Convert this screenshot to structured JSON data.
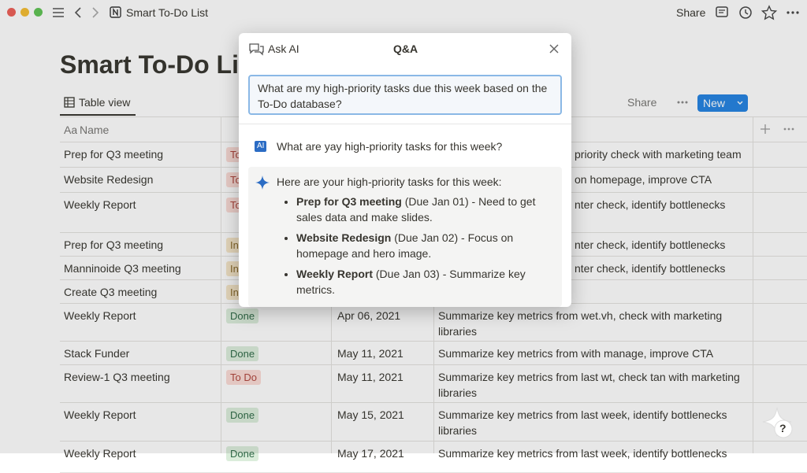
{
  "topbar": {
    "breadcrumb": "Smart To-Do List",
    "share": "Share"
  },
  "page": {
    "title": "Smart To-Do List",
    "view_tab": "Table view",
    "share": "Share",
    "new_button": "New"
  },
  "table": {
    "name_icon": "Aa",
    "name_header": "Name",
    "rows": [
      {
        "name": "Prep for Q3 meeting",
        "status": "To",
        "notes": "priority check with marketing team"
      },
      {
        "name": "Website Redesign",
        "status": "To",
        "notes": "on homepage, improve CTA"
      },
      {
        "name": "Weekly Report",
        "status": "To",
        "notes": "nter check, identify bottlenecks"
      },
      {
        "name": "Prep for Q3 meeting",
        "status": "In",
        "notes": "nter check, identify bottlenecks"
      },
      {
        "name": "Manninoide Q3 meeting",
        "status": "In",
        "notes": "nter check, identify bottlenecks"
      },
      {
        "name": "Create Q3 meeting",
        "status": "In"
      },
      {
        "name": "Weekly Report",
        "status": "Done",
        "date": "Apr 06, 2021",
        "notes": "Summarize key metrics from wet.vh, check with marketing libraries"
      },
      {
        "name": "Stack Funder",
        "status": "Done",
        "date": "May 11, 2021",
        "notes": "Summarize key metrics from with manage, improve CTA"
      },
      {
        "name": "Review-1 Q3 meeting",
        "status": "To Do",
        "date": "May 11, 2021",
        "notes": "Summarize key metrics from last wt, check tan with marketing libraries"
      },
      {
        "name": "Weekly Report",
        "status": "Done",
        "date": "May 15, 2021",
        "notes": "Summarize key metrics from last week, identify bottlenecks libraries"
      },
      {
        "name": "Weekly Report",
        "status": "Done",
        "date": "May 17, 2021",
        "notes": "Summarize key metrics from last week, identify bottlenecks"
      }
    ]
  },
  "modal": {
    "title": "Ask AI",
    "tab": "Q&A",
    "input": "What are my high-priority tasks due this week based on the To-Do database?",
    "ai_badge": "AI",
    "question": "What are yay high-priority tasks for this week?",
    "answer": {
      "intro": "Here are your high-priority tasks for this week:",
      "items": [
        {
          "task": "Prep for Q3 meeting",
          "detail": "(Due Jan 01) - Need to get sales data and make slides."
        },
        {
          "task": "Website Redesign",
          "detail": "(Due Jan 02) - Focus on homepage and hero image."
        },
        {
          "task": "Weekly Report",
          "detail": "(Due Jan 03) - Summarize key metrics."
        }
      ]
    }
  },
  "help": "?"
}
